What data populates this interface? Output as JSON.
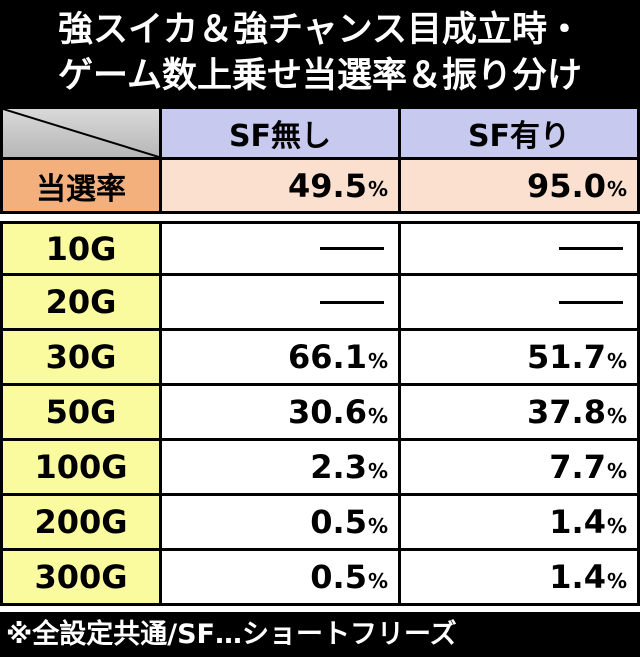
{
  "title": {
    "line1": "強スイカ＆強チャンス目成立時・",
    "line2": "ゲーム数上乗せ当選率＆振り分け"
  },
  "header": {
    "col1": "SF無し",
    "col2": "SF有り"
  },
  "rate_row": {
    "label": "当選率",
    "col1": "49.5",
    "col2": "95.0",
    "unit": "%"
  },
  "rows": [
    {
      "label": "10G",
      "col1": "",
      "col2": ""
    },
    {
      "label": "20G",
      "col1": "",
      "col2": ""
    },
    {
      "label": "30G",
      "col1": "66.1",
      "col2": "51.7"
    },
    {
      "label": "50G",
      "col1": "30.6",
      "col2": "37.8"
    },
    {
      "label": "100G",
      "col1": "2.3",
      "col2": "7.7"
    },
    {
      "label": "200G",
      "col1": "0.5",
      "col2": "1.4"
    },
    {
      "label": "300G",
      "col1": "0.5",
      "col2": "1.4"
    }
  ],
  "footnote": "※全設定共通/SF…ショートフリーズ",
  "colors": {
    "title_bg": "#000000",
    "header_bg": "#c7c9ef",
    "rate_label_bg": "#f3b07c",
    "rate_value_bg": "#fbe0cf",
    "row_label_bg": "#fafa9e"
  }
}
